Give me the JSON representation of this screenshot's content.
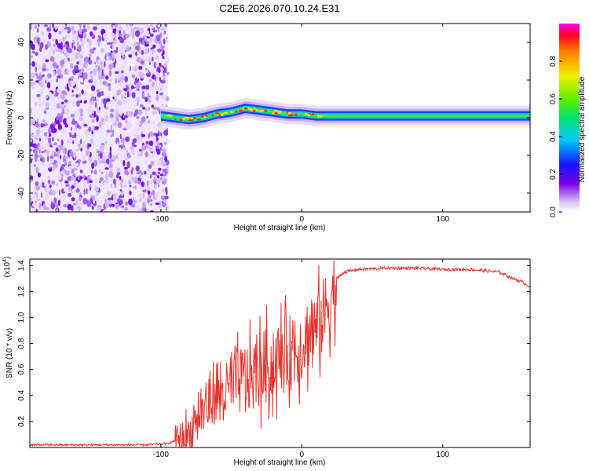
{
  "title": "C2E6.2026.070.10.24.E31",
  "chart_data": [
    {
      "type": "heatmap",
      "xlabel": "Height of straight line (km)",
      "ylabel": "Frequency (Hz)",
      "xlim": [
        -193,
        162
      ],
      "ylim": [
        -50,
        50
      ],
      "xticks": [
        -100,
        0,
        100
      ],
      "yticks": [
        -40,
        -20,
        0,
        20,
        40
      ],
      "noise_region_x": [
        -193,
        -95
      ],
      "signal_track": {
        "x": [
          -100,
          -90,
          -80,
          -70,
          -60,
          -50,
          -40,
          -30,
          -20,
          -10,
          0,
          10,
          20,
          40,
          60,
          80,
          100,
          120,
          140,
          162
        ],
        "frequency": [
          1,
          0,
          -1,
          0,
          2,
          3,
          5,
          4,
          3,
          2,
          2,
          1,
          1,
          1,
          1,
          1,
          1,
          1,
          1,
          1
        ]
      },
      "colorbar": {
        "label": "Normalized spectral amplitude",
        "range": [
          0,
          1
        ],
        "ticks": [
          "0.0",
          "0.2",
          "0.4",
          "0.6",
          "0.8"
        ]
      }
    },
    {
      "type": "line",
      "xlabel": "Height of straight line (km)",
      "ylabel": "SNR (10 * v/v)",
      "yscale_label": "(x10",
      "yscale_exp": "4",
      "xlim": [
        -193,
        162
      ],
      "ylim": [
        0,
        1.45
      ],
      "xticks": [
        -100,
        0,
        100
      ],
      "yticks": [
        "0.2",
        "0.4",
        "0.6",
        "0.8",
        "1.0",
        "1.2",
        "1.4"
      ],
      "series": [
        {
          "name": "SNR",
          "color": "#e8302a",
          "x": [
            -193,
            -150,
            -110,
            -95,
            -88,
            -80,
            -75,
            -70,
            -65,
            -60,
            -55,
            -50,
            -45,
            -40,
            -35,
            -30,
            -25,
            -20,
            -15,
            -10,
            -5,
            0,
            5,
            10,
            15,
            20,
            25,
            30,
            40,
            60,
            80,
            100,
            120,
            140,
            150,
            155,
            160,
            162
          ],
          "values": [
            0.02,
            0.02,
            0.02,
            0.03,
            0.06,
            0.1,
            0.22,
            0.3,
            0.35,
            0.4,
            0.42,
            0.45,
            0.5,
            0.52,
            0.55,
            0.58,
            0.63,
            0.62,
            0.7,
            0.72,
            0.75,
            0.8,
            0.88,
            0.9,
            1.0,
            1.15,
            1.3,
            1.35,
            1.37,
            1.38,
            1.38,
            1.37,
            1.37,
            1.35,
            1.3,
            1.28,
            1.25,
            1.24
          ]
        }
      ]
    }
  ]
}
